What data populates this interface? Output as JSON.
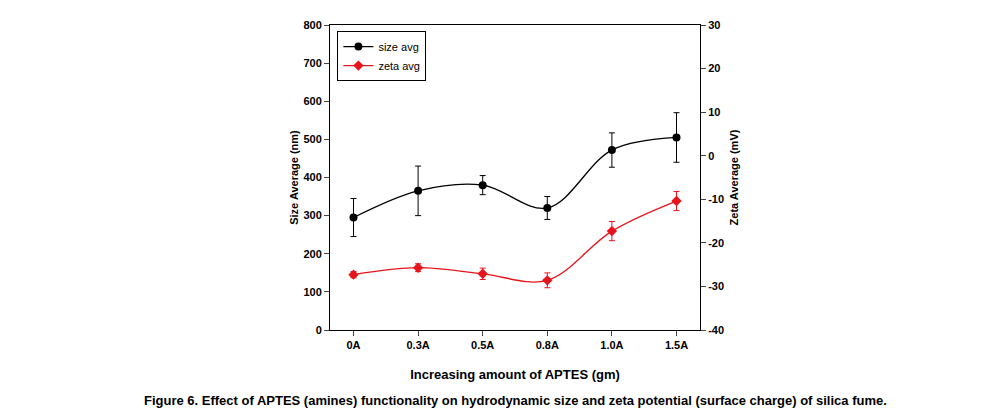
{
  "chart_data": {
    "type": "line",
    "caption": "Figure 6. Effect of APTES (amines) functionality on hydrodynamic size and zeta potential (surface charge) of silica fume.",
    "x_label": "Increasing amount of APTES (gm)",
    "y_label": "Size Average (nm)",
    "y2_label": "Zeta Average (mV)",
    "categories": [
      "0A",
      "0.3A",
      "0.5A",
      "0.8A",
      "1.0A",
      "1.5A"
    ],
    "series": [
      {
        "name": "size avg",
        "color": "#000000",
        "marker": "circle",
        "axis": "y",
        "values": [
          295,
          365,
          380,
          320,
          472,
          505
        ],
        "errors": [
          50,
          65,
          25,
          30,
          45,
          65
        ]
      },
      {
        "name": "zeta avg",
        "color": "#e8141c",
        "marker": "diamond",
        "axis": "y2",
        "values": [
          -27.3,
          -25.7,
          -27.1,
          -28.6,
          -17.3,
          -10.4
        ],
        "errors": [
          0.7,
          0.9,
          1.3,
          1.7,
          2.2,
          2.2
        ]
      }
    ],
    "ylim": [
      0,
      800
    ],
    "yticks": [
      0,
      100,
      200,
      300,
      400,
      500,
      600,
      700,
      800
    ],
    "y2lim": [
      -40,
      30
    ],
    "y2ticks": [
      -40,
      -30,
      -20,
      -10,
      0,
      10,
      20,
      30
    ],
    "legend": "top-left",
    "grid": false
  }
}
